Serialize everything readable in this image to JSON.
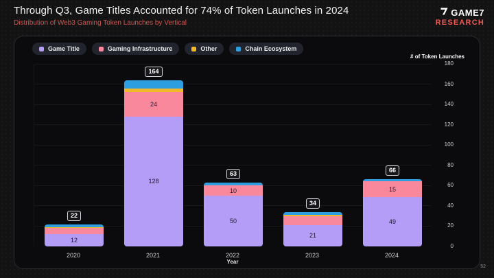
{
  "header": {
    "title": "Through Q3, Game Titles Accounted for 74% of Token Launches in 2024",
    "subtitle": "Distribution of Web3 Gaming Token Launches by Vertical"
  },
  "logo": {
    "name": "GAME7",
    "sub": "RESEARCH"
  },
  "page_number": "52",
  "chart_data": {
    "type": "bar",
    "stacked": true,
    "title": "Distribution of Web3 Gaming Token Launches by Vertical",
    "categories": [
      "2020",
      "2021",
      "2022",
      "2023",
      "2024"
    ],
    "series": [
      {
        "name": "Game Title",
        "color": "#B49DF6",
        "values": [
          12,
          128,
          50,
          21,
          49
        ]
      },
      {
        "name": "Gaming Infrastructure",
        "color": "#F9889D",
        "values": [
          6,
          24,
          10,
          9,
          15
        ]
      },
      {
        "name": "Other",
        "color": "#F3B72B",
        "values": [
          1,
          4,
          0,
          1,
          0
        ]
      },
      {
        "name": "Chain Ecosystem",
        "color": "#2D9FE0",
        "values": [
          3,
          8,
          3,
          3,
          2
        ]
      }
    ],
    "totals": [
      22,
      164,
      63,
      34,
      66
    ],
    "xlabel": "Year",
    "ylabel": "# of Token Launches",
    "ylim": [
      0,
      180
    ],
    "ytick_step": 20,
    "legend_position": "top-left",
    "grid": "horizontal",
    "value_axis_side": "right"
  }
}
